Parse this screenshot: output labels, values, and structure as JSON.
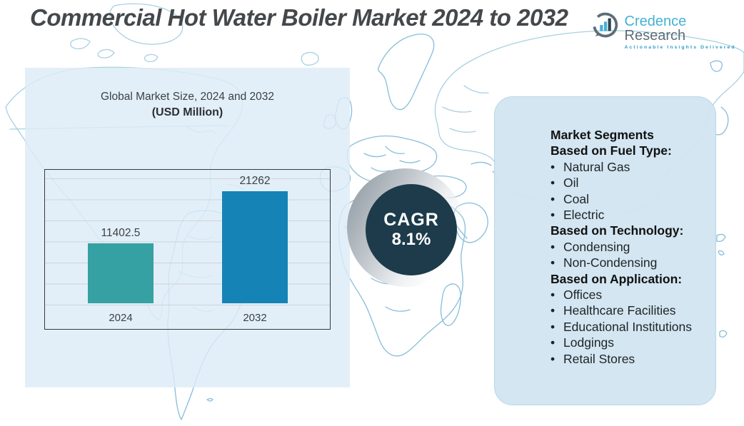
{
  "header": {
    "title": "Commercial Hot Water Boiler Market 2024 to 2032",
    "logo": {
      "brand_primary": "Credence",
      "brand_secondary": " Research",
      "tagline": "Actionable Insights Delivered"
    }
  },
  "chart_data": {
    "type": "bar",
    "title": "Global Market Size, 2024 and 2032",
    "subtitle": "(USD Million)",
    "categories": [
      "2024",
      "2032"
    ],
    "values": [
      11402.5,
      21262
    ],
    "value_labels": [
      "11402.5",
      "21262"
    ],
    "ylim": [
      0,
      25300
    ],
    "grid": true,
    "legend": false,
    "bar_colors": [
      "#35a1a3",
      "#1583b5"
    ]
  },
  "cagr": {
    "label": "CAGR",
    "value": "8.1%"
  },
  "segments": {
    "title": "Market Segments",
    "sections": [
      {
        "heading": "Based on Fuel Type:",
        "items": [
          "Natural Gas",
          "Oil",
          "Coal",
          "Electric"
        ]
      },
      {
        "heading": "Based on Technology:",
        "items": [
          "Condensing",
          "Non-Condensing"
        ]
      },
      {
        "heading": "Based on Application:",
        "items": [
          "Offices",
          "Healthcare Facilities",
          "Educational Institutions",
          "Lodgings",
          "Retail Stores"
        ]
      }
    ]
  },
  "colors": {
    "bar_2024": "#35a1a3",
    "bar_2032": "#1583b5",
    "cagr_circle": "#1d3b4a",
    "panel_blue": "#d2e5f1",
    "map_line": "#a9cfe2",
    "brand_blue": "#45b0d5",
    "title_gray": "#45484b"
  }
}
